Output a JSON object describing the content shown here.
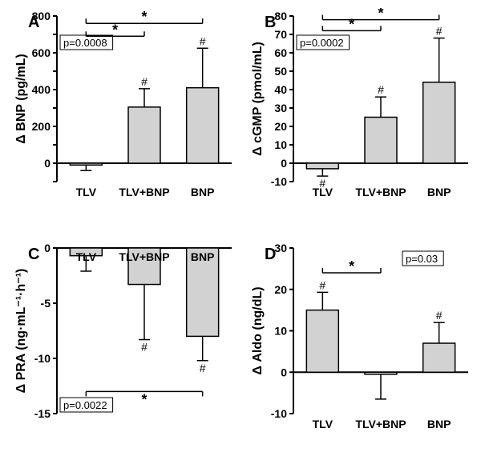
{
  "global": {
    "font_family": "Arial, Helvetica, sans-serif",
    "background_color": "#ffffff",
    "axis_color": "#000000",
    "bar_fill": "#d2d2d2",
    "bar_stroke": "#000000",
    "text_color": "#000000",
    "axis_stroke_width": 2,
    "bar_stroke_width": 1.5,
    "hash_symbol": "#",
    "star_symbol": "*"
  },
  "panels": {
    "A": {
      "letter": "A",
      "type": "bar",
      "ylabel": "Δ BNP (pg/mL)",
      "pvalue_text": "p=0.0008",
      "pvalue_pos": "in-plot-left",
      "label_fontsize": 16,
      "tick_fontsize": 14,
      "letter_fontsize": 20,
      "ylim": [
        -100,
        800
      ],
      "yticks": [
        -100,
        0,
        100,
        200,
        300,
        400,
        500,
        600,
        700,
        800
      ],
      "yticklabels": [
        "",
        "0",
        "",
        "200",
        "",
        "400",
        "",
        "600",
        "",
        "800"
      ],
      "xcats": [
        "TLV",
        "TLV+BNP",
        "BNP"
      ],
      "values": [
        -10,
        305,
        410
      ],
      "errors": [
        30,
        100,
        215
      ],
      "hash_on": [
        false,
        true,
        true
      ],
      "sig_lines": [
        {
          "i": 0,
          "j": 1,
          "y": 690,
          "label": "*"
        },
        {
          "i": 0,
          "j": 2,
          "y": 760,
          "label": "*"
        }
      ],
      "bar_width": 0.55
    },
    "B": {
      "letter": "B",
      "type": "bar",
      "ylabel": "Δ cGMP (pmol/mL)",
      "pvalue_text": "p=0.0002",
      "pvalue_pos": "in-plot-left",
      "label_fontsize": 16,
      "tick_fontsize": 14,
      "letter_fontsize": 20,
      "ylim": [
        -10,
        80
      ],
      "yticks": [
        -10,
        0,
        10,
        20,
        30,
        40,
        50,
        60,
        70,
        80
      ],
      "yticklabels": [
        "-10",
        "0",
        "10",
        "20",
        "30",
        "40",
        "50",
        "60",
        "70",
        "80"
      ],
      "xcats": [
        "TLV",
        "TLV+BNP",
        "BNP"
      ],
      "values": [
        -3,
        25,
        44
      ],
      "errors": [
        4,
        11,
        24
      ],
      "hash_on": [
        true,
        true,
        true
      ],
      "sig_lines": [
        {
          "i": 0,
          "j": 1,
          "y": 72,
          "label": "*"
        },
        {
          "i": 0,
          "j": 2,
          "y": 78,
          "label": "*"
        }
      ],
      "bar_width": 0.55
    },
    "C": {
      "letter": "C",
      "type": "bar",
      "ylabel": "Δ PRA (ng·mL⁻¹·h⁻¹)",
      "pvalue_text": "p=0.0022",
      "pvalue_pos": "in-plot-left-bottom",
      "label_fontsize": 16,
      "tick_fontsize": 14,
      "letter_fontsize": 20,
      "ylim": [
        -15,
        0
      ],
      "yticks": [
        -15,
        -10,
        -5,
        0
      ],
      "yticklabels": [
        "-15",
        "-10",
        "-5",
        "0"
      ],
      "xcats": [
        "TLV",
        "TLV+BNP",
        "BNP"
      ],
      "values": [
        -0.7,
        -3.3,
        -8.0
      ],
      "errors": [
        1.4,
        5.0,
        2.2
      ],
      "hash_on": [
        false,
        true,
        true
      ],
      "sig_lines": [
        {
          "i": 0,
          "j": 2,
          "y": -13,
          "label": "*",
          "below": true
        }
      ],
      "bar_width": 0.55,
      "x_axis_at_top": true
    },
    "D": {
      "letter": "D",
      "type": "bar",
      "ylabel": "Δ Aldo (ng/dL)",
      "pvalue_text": "p=0.03",
      "pvalue_pos": "in-plot-right",
      "label_fontsize": 16,
      "tick_fontsize": 14,
      "letter_fontsize": 20,
      "ylim": [
        -10,
        30
      ],
      "yticks": [
        -10,
        0,
        10,
        20,
        30
      ],
      "yticklabels": [
        "-10",
        "0",
        "10",
        "20",
        "30"
      ],
      "xcats": [
        "TLV",
        "TLV+BNP",
        "BNP"
      ],
      "values": [
        15,
        -0.5,
        7
      ],
      "errors": [
        4.3,
        6.0,
        5.0
      ],
      "hash_on": [
        true,
        false,
        true
      ],
      "sig_lines": [
        {
          "i": 0,
          "j": 1,
          "y": 24,
          "label": "*"
        }
      ],
      "bar_width": 0.55
    }
  }
}
